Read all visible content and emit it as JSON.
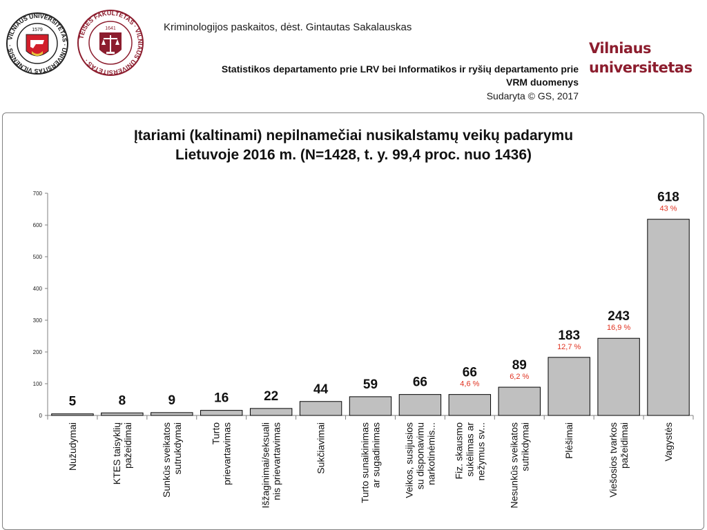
{
  "header": {
    "course": "Kriminologijos paskaitos, dėst. Gintautas Sakalauskas",
    "source_line1": "Statistikos departamento prie LRV bei Informatikos ir ryšių departamento prie",
    "source_line2": "VRM duomenys",
    "credit": "Sudaryta © GS, 2017",
    "brand_line1": "Vilniaus",
    "brand_line2": "universitetas",
    "logo1_text": "VILNIAUS UNIVERSITETAS · UNIVERSITAS VILNENSIS · 1579",
    "logo2_text": "TEISĖS FAKULTETAS · VILNIAUS UNIVERSITETAS · 1641",
    "brand_color": "#8c1d2e"
  },
  "chart_data": {
    "type": "bar",
    "title_line1": "Įtariami (kaltinami) nepilnamečiai nusikalstamų veikų padarymu",
    "title_line2": "Lietuvoje 2016 m. (N=1428, t. y. 99,4 proc. nuo 1436)",
    "categories": [
      [
        "Nužudymai"
      ],
      [
        "KTES taisyklių",
        "pažeidimai"
      ],
      [
        "Sunkūs sveikatos",
        "sutrukdymai"
      ],
      [
        "Turto",
        "prievartavimas"
      ],
      [
        "Išžaginimai/seksuali",
        "nis prievartavimas"
      ],
      [
        "Sukčiavimai"
      ],
      [
        "Turto sunaikinimas",
        "ar sugadinimas"
      ],
      [
        "Veikos, susijusios",
        "su disponavimu",
        "narkotinėmis..."
      ],
      [
        "Fiz. skausmo",
        "sukėlimas ar",
        "nežymus sv..."
      ],
      [
        "Nesunkūs sveikatos",
        "sutrikdymai"
      ],
      [
        "Plėšimai"
      ],
      [
        "Viešosios tvarkos",
        "pažeidimai"
      ],
      [
        "Vagystės"
      ]
    ],
    "values": [
      5,
      8,
      9,
      16,
      22,
      44,
      59,
      66,
      66,
      89,
      183,
      243,
      618
    ],
    "value_labels": [
      "5",
      "8",
      "9",
      "16",
      "22",
      "44",
      "59",
      "66",
      "66",
      "89",
      "183",
      "243",
      "618"
    ],
    "percent_labels": [
      "",
      "",
      "",
      "",
      "",
      "",
      "",
      "",
      "4,6 %",
      "6,2 %",
      "12,7 %",
      "16,9 %",
      "43 %"
    ],
    "ylim": [
      0,
      700
    ],
    "yticks": [
      0,
      100,
      200,
      300,
      400,
      500,
      600,
      700
    ],
    "bar_color": "#c0c0c0",
    "bar_border": "#000000",
    "percent_color": "#e0301e",
    "grid": false,
    "legend": "none"
  }
}
